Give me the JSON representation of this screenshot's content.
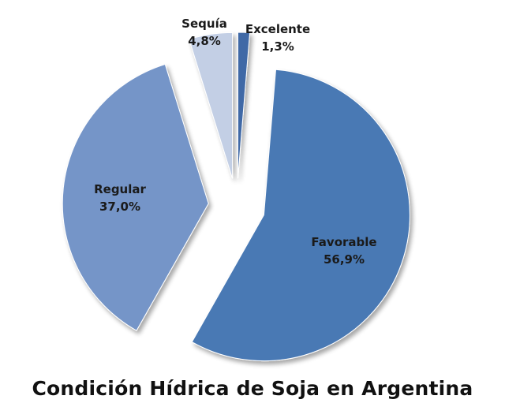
{
  "chart_data": {
    "type": "pie",
    "title": "Condición Hídrica de Soja en Argentina",
    "exploded": true,
    "slices": [
      {
        "label": "Excelente",
        "value": 1.3,
        "value_label": "1,3%",
        "color": "#3f69a6"
      },
      {
        "label": "Favorable",
        "value": 56.9,
        "value_label": "56,9%",
        "color": "#4a79b4"
      },
      {
        "label": "Regular",
        "value": 37.0,
        "value_label": "37,0%",
        "color": "#7595c8"
      },
      {
        "label": "Sequía",
        "value": 4.8,
        "value_label": "4,8%",
        "color": "#c3cfe5"
      }
    ]
  }
}
